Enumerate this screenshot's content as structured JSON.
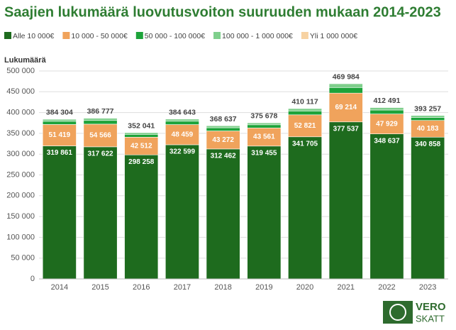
{
  "chart_data": {
    "type": "stacked_bar",
    "title": "Saajien lukumäärä luovutusvoiton suuruuden mukaan 2014-2023",
    "y_label": "Lukumäärä",
    "categories": [
      "2014",
      "2015",
      "2016",
      "2017",
      "2018",
      "2019",
      "2020",
      "2021",
      "2022",
      "2023"
    ],
    "series": [
      {
        "name": "Alle 10 000€",
        "color": "#1e6b1e",
        "values": [
          319861,
          317622,
          298258,
          322599,
          312462,
          319455,
          341705,
          377537,
          348637,
          340858
        ],
        "value_labels": [
          "319 861",
          "317 622",
          "298 258",
          "322 599",
          "312 462",
          "319 455",
          "341 705",
          "377 537",
          "348 637",
          "340 858"
        ]
      },
      {
        "name": "10 000 - 50 000€",
        "color": "#f0a35c",
        "values": [
          51419,
          54566,
          42512,
          48459,
          43272,
          43561,
          52821,
          69214,
          47929,
          40183
        ],
        "value_labels": [
          "51 419",
          "54 566",
          "42 512",
          "48 459",
          "43 272",
          "43 561",
          "52 821",
          "69 214",
          "47 929",
          "40 183"
        ]
      },
      {
        "name": "50 000 - 100 000€",
        "color": "#1da33a",
        "values": [
          7800,
          8800,
          6800,
          8150,
          7750,
          7600,
          9350,
          13500,
          9550,
          7350
        ]
      },
      {
        "name": "100 000 - 1 000 000€",
        "color": "#7fcf8c",
        "values": [
          4950,
          5500,
          4250,
          5150,
          4900,
          4800,
          5900,
          9200,
          6050,
          4650
        ]
      },
      {
        "name": "Yli 1 000 000€",
        "color": "#f7d2a2",
        "values": [
          274,
          289,
          221,
          285,
          253,
          262,
          341,
          533,
          325,
          216
        ]
      }
    ],
    "totals": [
      384304,
      386777,
      352041,
      384643,
      368637,
      375678,
      410117,
      469984,
      412491,
      393257
    ],
    "total_labels": [
      "384 304",
      "386 777",
      "352 041",
      "384 643",
      "368 637",
      "375 678",
      "410 117",
      "469 984",
      "412 491",
      "393 257"
    ],
    "ylim": [
      0,
      500000
    ],
    "yticks": [
      0,
      {
        "value": 50000,
        "label": "50 000"
      },
      {
        "value": 100000,
        "label": "100 000"
      },
      {
        "value": 150000,
        "label": "150 000"
      },
      {
        "value": 200000,
        "label": "200 000"
      },
      {
        "value": 250000,
        "label": "250 000"
      },
      {
        "value": 300000,
        "label": "300 000"
      },
      {
        "value": 350000,
        "label": "350 000"
      },
      {
        "value": 400000,
        "label": "400 000"
      },
      {
        "value": 450000,
        "label": "450 000"
      },
      {
        "value": 500000,
        "label": "500 000"
      }
    ],
    "grid": true,
    "logo": {
      "top": "VERO",
      "bottom": "SKATT"
    }
  }
}
